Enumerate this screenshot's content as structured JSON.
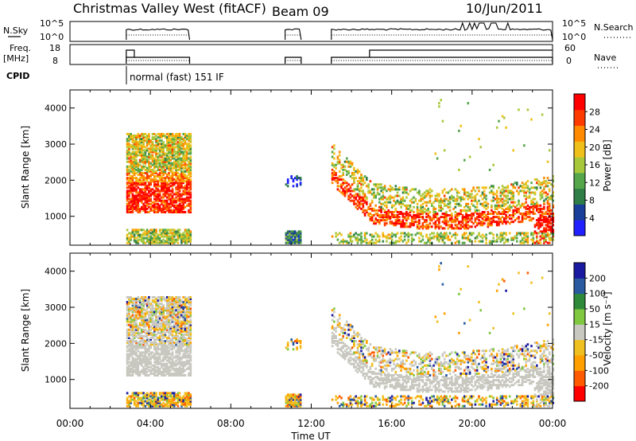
{
  "header": {
    "title": "Christmas Valley West (fitACF)",
    "beam": "Beam 09",
    "date": "10/Jun/2011"
  },
  "colors": {
    "power_scale": [
      "#2020ff",
      "#1a3f9a",
      "#2f7e48",
      "#55a64a",
      "#a8c83c",
      "#f0c01a",
      "#ff8a00",
      "#ff3a00",
      "#ff0000"
    ],
    "velocity_scale": [
      "#ff0000",
      "#ff5a00",
      "#ffa000",
      "#f0c020",
      "#c8c8c0",
      "#80c840",
      "#2f8a3a",
      "#2a5aa0",
      "#1a1aa0"
    ],
    "ground_scatter": "#c8c8c0"
  },
  "chart_data": [
    {
      "type": "line",
      "name": "noise-panel",
      "left_label": "N.Sky",
      "left_ticks": [
        "10^5",
        "10^0"
      ],
      "right_label": "N.Search",
      "right_ticks": [
        "10^5",
        "10^0"
      ],
      "x_range_hours": [
        0,
        24
      ],
      "segments_hours": [
        [
          2.8,
          5.95
        ],
        [
          10.7,
          11.5
        ],
        [
          13.0,
          24.0
        ]
      ]
    },
    {
      "type": "line",
      "name": "freq-panel",
      "left_label": "Freq.",
      "left_unit": "[MHz]",
      "left_ticks": [
        "18",
        "8"
      ],
      "right_label": "Nave",
      "right_ticks": [
        "60",
        "0"
      ],
      "x_range_hours": [
        0,
        24
      ]
    },
    {
      "type": "table",
      "name": "cpid-row",
      "label": "CPID",
      "mode_text": "normal (fast) 151 IF"
    },
    {
      "type": "heatmap",
      "name": "power-panel",
      "ylabel": "Slant Range [km]",
      "yticks": [
        1000,
        2000,
        3000,
        4000
      ],
      "ylim": [
        200,
        4500
      ],
      "x_range_hours": [
        0,
        24
      ],
      "colorbar": {
        "label": "Power [dB]",
        "ticks": [
          4,
          8,
          12,
          16,
          20,
          24,
          28
        ],
        "range": [
          0,
          32
        ]
      }
    },
    {
      "type": "heatmap",
      "name": "velocity-panel",
      "ylabel": "Slant Range [km]",
      "yticks": [
        1000,
        2000,
        3000,
        4000
      ],
      "ylim": [
        200,
        4500
      ],
      "x_range_hours": [
        0,
        24
      ],
      "xticks": [
        "00:00",
        "04:00",
        "08:00",
        "12:00",
        "16:00",
        "20:00",
        "00:00"
      ],
      "xlabel": "Time UT",
      "colorbar": {
        "label": "Velocity [m s⁻¹]",
        "ticks": [
          200,
          100,
          50,
          15,
          -15,
          -50,
          -100,
          -200
        ]
      }
    }
  ]
}
